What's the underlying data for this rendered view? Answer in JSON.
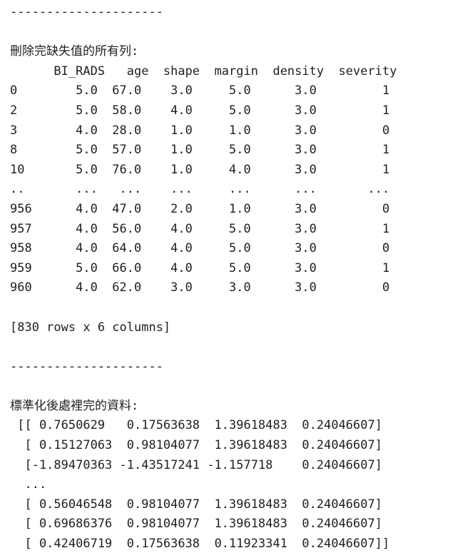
{
  "output": {
    "lines": [
      "---------------------",
      "",
      "刪除完缺失值的所有列:",
      "      BI_RADS   age  shape  margin  density  severity",
      "0        5.0  67.0    3.0     5.0      3.0         1",
      "2        5.0  58.0    4.0     5.0      3.0         1",
      "3        4.0  28.0    1.0     1.0      3.0         0",
      "8        5.0  57.0    1.0     5.0      3.0         1",
      "10       5.0  76.0    1.0     4.0      3.0         1",
      "..       ...   ...    ...     ...      ...       ...",
      "956      4.0  47.0    2.0     1.0      3.0         0",
      "957      4.0  56.0    4.0     5.0      3.0         1",
      "958      4.0  64.0    4.0     5.0      3.0         0",
      "959      5.0  66.0    4.0     5.0      3.0         1",
      "960      4.0  62.0    3.0     3.0      3.0         0",
      "",
      "[830 rows x 6 columns]",
      "",
      "---------------------",
      "",
      "標準化後處裡完的資料:",
      " [[ 0.7650629   0.17563638  1.39618483  0.24046607]",
      "  [ 0.15127063  0.98104077  1.39618483  0.24046607]",
      "  [-1.89470363 -1.43517241 -1.157718    0.24046607]",
      "  ...",
      "  [ 0.56046548  0.98104077  1.39618483  0.24046607]",
      "  [ 0.69686376  0.98104077  1.39618483  0.24046607]",
      "  [ 0.42406719  0.17563638  0.11923341  0.24046607]]"
    ]
  }
}
